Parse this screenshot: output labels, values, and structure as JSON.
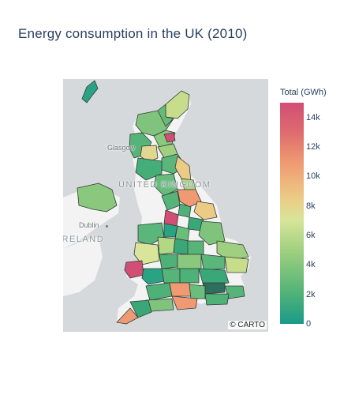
{
  "chart_data": {
    "type": "choropleth map",
    "title": "Energy consumption in the UK (2010)",
    "colorbar": {
      "title": "Total (GWh)",
      "range": [
        0,
        15000
      ],
      "ticks": [
        "0",
        "2k",
        "4k",
        "6k",
        "8k",
        "10k",
        "12k",
        "14k"
      ],
      "tick_values": [
        0,
        2000,
        4000,
        6000,
        8000,
        10000,
        12000,
        14000
      ],
      "colorscale": [
        "#1b9a8a",
        "#4db178",
        "#9fd07f",
        "#d8e59a",
        "#eccb84",
        "#ef9a72",
        "#de6a6f",
        "#d14e75"
      ]
    },
    "basemap": {
      "labels": [
        "Glasgow",
        "UNITED KINGDOM",
        "Dublin",
        "IRELAND"
      ],
      "attribution": "© CARTO"
    }
  }
}
